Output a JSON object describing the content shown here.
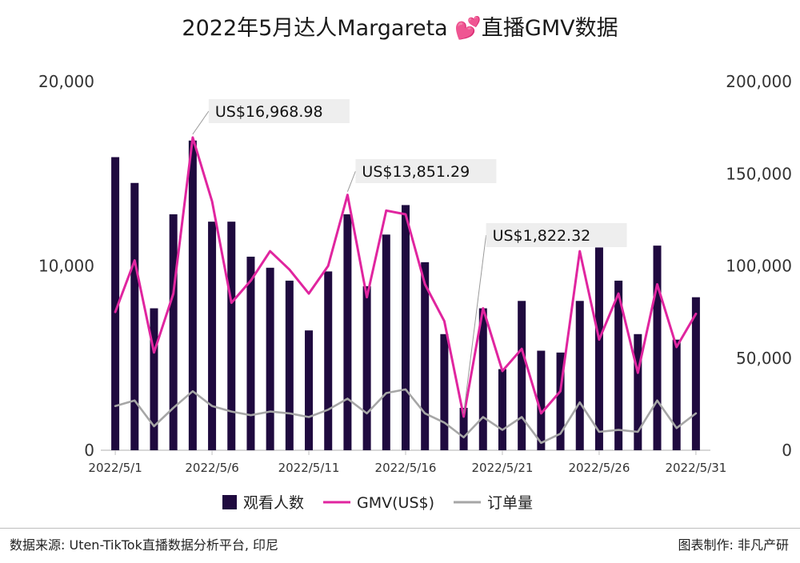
{
  "chart_data": {
    "type": "bar",
    "title": "2022年5月达人Margareta 💕直播GMV数据",
    "left_axis": {
      "ylim": [
        0,
        20000
      ],
      "ticks": [
        "0",
        "10,000",
        "20,000"
      ]
    },
    "right_axis": {
      "ylim": [
        0,
        200000
      ],
      "ticks": [
        "0",
        "50,000",
        "100,000",
        "150,000",
        "200,000"
      ]
    },
    "x_tick_labels": [
      "2022/5/1",
      "2022/5/6",
      "2022/5/11",
      "2022/5/16",
      "2022/5/21",
      "2022/5/26",
      "2022/5/31"
    ],
    "x": [
      "2022/5/1",
      "2022/5/2",
      "2022/5/3",
      "2022/5/4",
      "2022/5/5",
      "2022/5/6",
      "2022/5/7",
      "2022/5/8",
      "2022/5/9",
      "2022/5/10",
      "2022/5/11",
      "2022/5/12",
      "2022/5/13",
      "2022/5/14",
      "2022/5/15",
      "2022/5/16",
      "2022/5/17",
      "2022/5/18",
      "2022/5/19",
      "2022/5/20",
      "2022/5/21",
      "2022/5/22",
      "2022/5/23",
      "2022/5/24",
      "2022/5/25",
      "2022/5/26",
      "2022/5/27",
      "2022/5/28",
      "2022/5/29",
      "2022/5/30",
      "2022/5/31"
    ],
    "series": [
      {
        "name": "观看人数",
        "type": "bar",
        "axis": "left",
        "color": "#1f0a3f",
        "values": [
          15900,
          14500,
          7700,
          12800,
          16800,
          12400,
          12400,
          10500,
          9900,
          9200,
          6500,
          9700,
          12800,
          8900,
          11700,
          13300,
          10200,
          6300,
          2300,
          7700,
          4400,
          8100,
          5400,
          5300,
          8100,
          11000,
          9200,
          6300,
          11100,
          6000,
          8300
        ]
      },
      {
        "name": "GMV(US$)",
        "type": "line",
        "axis": "left",
        "color": "#e0259f",
        "values": [
          7500,
          10300,
          5300,
          8500,
          16969,
          13500,
          8000,
          9200,
          10800,
          9800,
          8500,
          10000,
          13851,
          8300,
          13000,
          12800,
          9000,
          7000,
          1822,
          7700,
          4300,
          5500,
          2000,
          3200,
          10800,
          6000,
          8500,
          4200,
          9000,
          5600,
          7400
        ]
      },
      {
        "name": "订单量",
        "type": "line",
        "axis": "left",
        "color": "#a6a6a6",
        "values": [
          2400,
          2700,
          1300,
          2300,
          3200,
          2400,
          2100,
          1900,
          2100,
          2000,
          1800,
          2200,
          2800,
          2000,
          3100,
          3300,
          2000,
          1500,
          700,
          1800,
          1100,
          1800,
          400,
          900,
          2600,
          1000,
          1100,
          1000,
          2700,
          1200,
          2000
        ]
      }
    ],
    "annotations": [
      {
        "label": "US$16,968.98",
        "x": "2022/5/5",
        "y": 16969
      },
      {
        "label": "US$13,851.29",
        "x": "2022/5/13",
        "y": 13851
      },
      {
        "label": "US$1,822.32",
        "x": "2022/5/19",
        "y": 1822
      }
    ],
    "legend_placement": "bottom-center",
    "grid": false
  },
  "footer": {
    "source": "数据来源: Uten-TikTok直播数据分析平台, 印尼",
    "credit": "图表制作: 非凡产研"
  }
}
